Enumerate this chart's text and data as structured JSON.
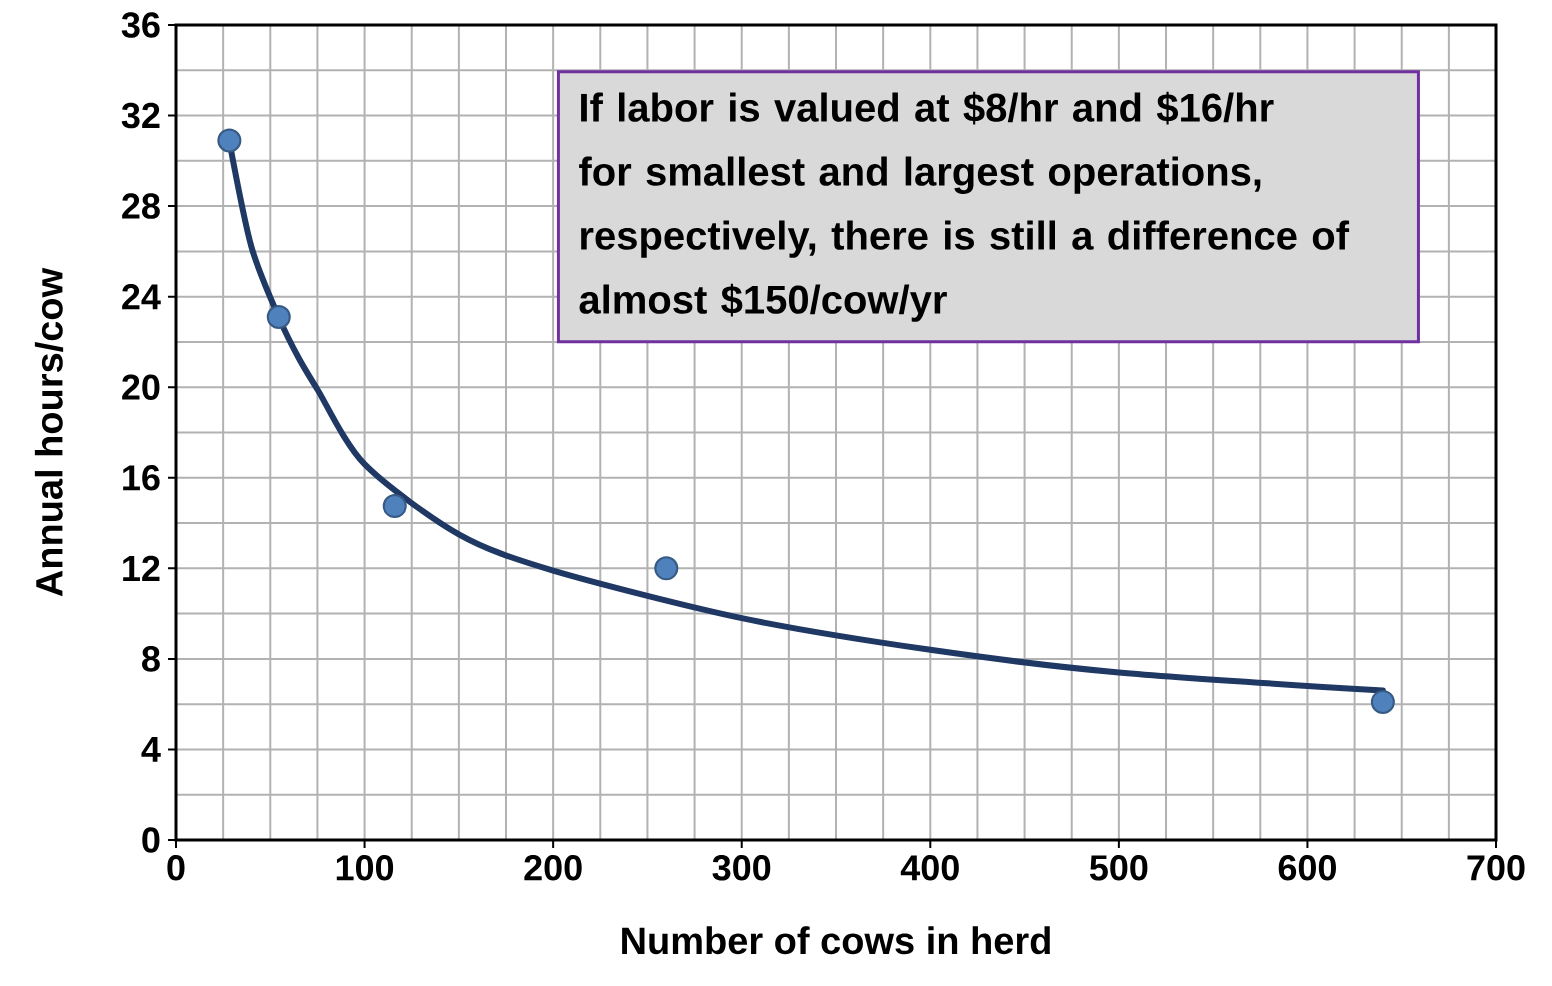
{
  "chart_data": {
    "type": "scatter",
    "xlabel": "Number of cows in herd",
    "ylabel": "Annual hours/cow",
    "xlim": [
      0,
      700
    ],
    "ylim": [
      0,
      36
    ],
    "xticks": [
      0,
      100,
      200,
      300,
      400,
      500,
      600,
      700
    ],
    "yticks": [
      0,
      4,
      8,
      12,
      16,
      20,
      24,
      28,
      32,
      36
    ],
    "grid": true,
    "series": [
      {
        "marker": "circle",
        "color": "#4f81bd",
        "x": [
          28.3,
          54.5,
          116,
          260,
          640
        ],
        "values": [
          30.9,
          23.1,
          14.75,
          12.0,
          6.1
        ]
      },
      {
        "type": "line",
        "marker": "none",
        "color": "#1f3864",
        "x": [
          28,
          40,
          55,
          65,
          75,
          100,
          150,
          200,
          300,
          400,
          500,
          640
        ],
        "values": [
          31,
          26.2,
          23.0,
          21.3,
          19.9,
          16.6,
          13.5,
          11.9,
          9.8,
          8.4,
          7.4,
          6.6
        ]
      }
    ],
    "annotations": [
      "If labor is valued at $8/hr and $16/hr for smallest and largest operations, respectively, there is still a difference of almost $150/cow/yr"
    ]
  }
}
